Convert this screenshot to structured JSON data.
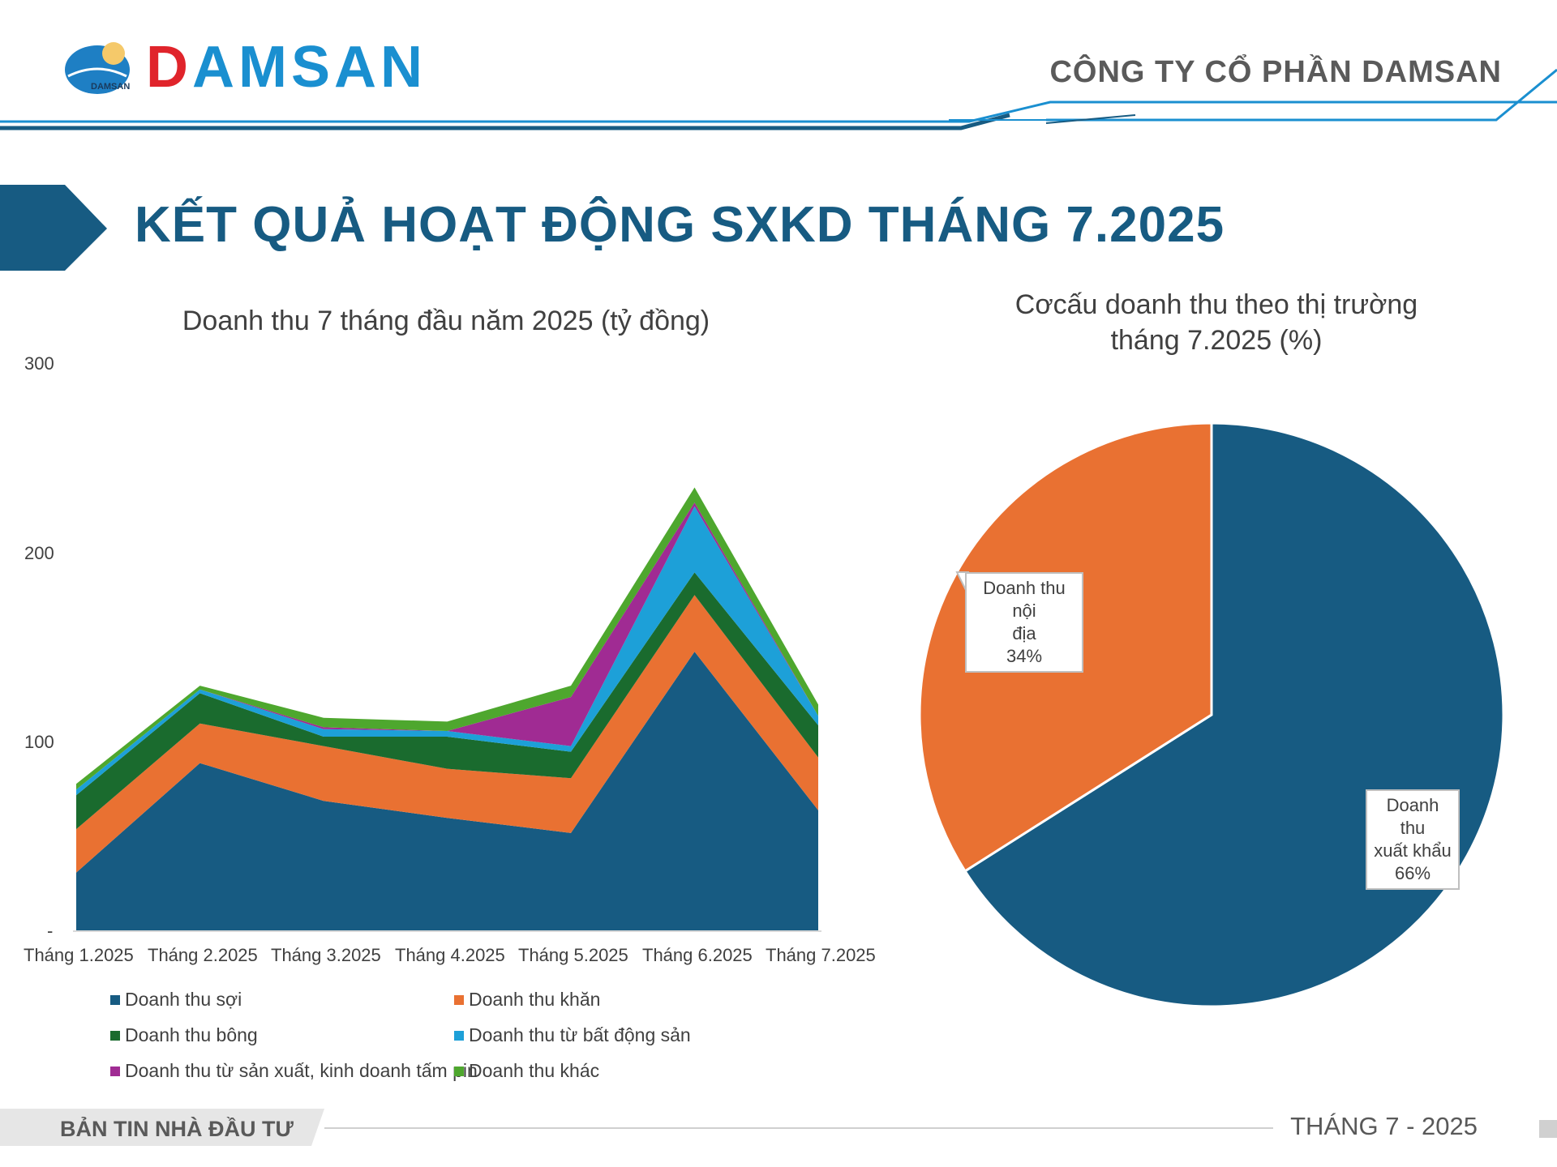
{
  "header": {
    "logo_small_text": "DAMSAN",
    "logo_text_first": "D",
    "logo_text_rest": "AMSAN",
    "company_name": "CÔNG TY CỔ PHẦN DAMSAN"
  },
  "page": {
    "title": "KẾT QUẢ HOẠT ĐỘNG SXKD THÁNG 7.2025"
  },
  "footer": {
    "left": "BẢN TIN NHÀ ĐẦU TƯ",
    "right": "THÁNG 7 - 2025"
  },
  "colors": {
    "navy": "#175b82",
    "orange": "#e97132",
    "dark_green": "#1a6b2e",
    "cyan": "#1da0d8",
    "purple": "#a02b93",
    "light_green": "#4ea72e"
  },
  "chart_data": [
    {
      "type": "area",
      "stacked": true,
      "title": "Doanh thu 7 tháng đầu năm 2025 (tỷ đồng)",
      "categories": [
        "Tháng 1.2025",
        "Tháng 2.2025",
        "Tháng 3.2025",
        "Tháng 4.2025",
        "Tháng 5.2025",
        "Tháng 6.2025",
        "Tháng 7.2025"
      ],
      "y_ticks": [
        "300",
        "200",
        "100",
        "-"
      ],
      "ylim": [
        0,
        300
      ],
      "grid": false,
      "legend_position": "bottom",
      "series": [
        {
          "name": "Doanh thu sợi",
          "color": "#175b82",
          "values": [
            31,
            89,
            69,
            60,
            52,
            148,
            64
          ]
        },
        {
          "name": "Doanh thu khăn",
          "color": "#e97132",
          "values": [
            23,
            21,
            29,
            26,
            29,
            30,
            28
          ]
        },
        {
          "name": "Doanh thu bông",
          "color": "#1a6b2e",
          "values": [
            18,
            16,
            5,
            17,
            14,
            12,
            17
          ]
        },
        {
          "name": "Doanh thu từ bất động sản",
          "color": "#1da0d8",
          "values": [
            3,
            2,
            4,
            3,
            3,
            35,
            5
          ]
        },
        {
          "name": "Doanh thu từ sản xuất, kinh doanh tấm pin",
          "color": "#a02b93",
          "values": [
            0,
            0,
            1,
            0,
            26,
            2,
            0
          ]
        },
        {
          "name": "Doanh thu khác",
          "color": "#4ea72e",
          "values": [
            3,
            2,
            5,
            5,
            6,
            8,
            6
          ]
        }
      ]
    },
    {
      "type": "pie",
      "title_line1": "Cơcấu doanh thu theo thị trường",
      "title_line2": "tháng 7.2025 (%)",
      "slices": [
        {
          "label_line1": "Doanh thu",
          "label_line2": "xuất khẩu",
          "percent_text": "66%",
          "value": 66,
          "color": "#175b82"
        },
        {
          "label_line1": "Doanh thu nội",
          "label_line2": "địa",
          "percent_text": "34%",
          "value": 34,
          "color": "#e97132"
        }
      ]
    }
  ]
}
